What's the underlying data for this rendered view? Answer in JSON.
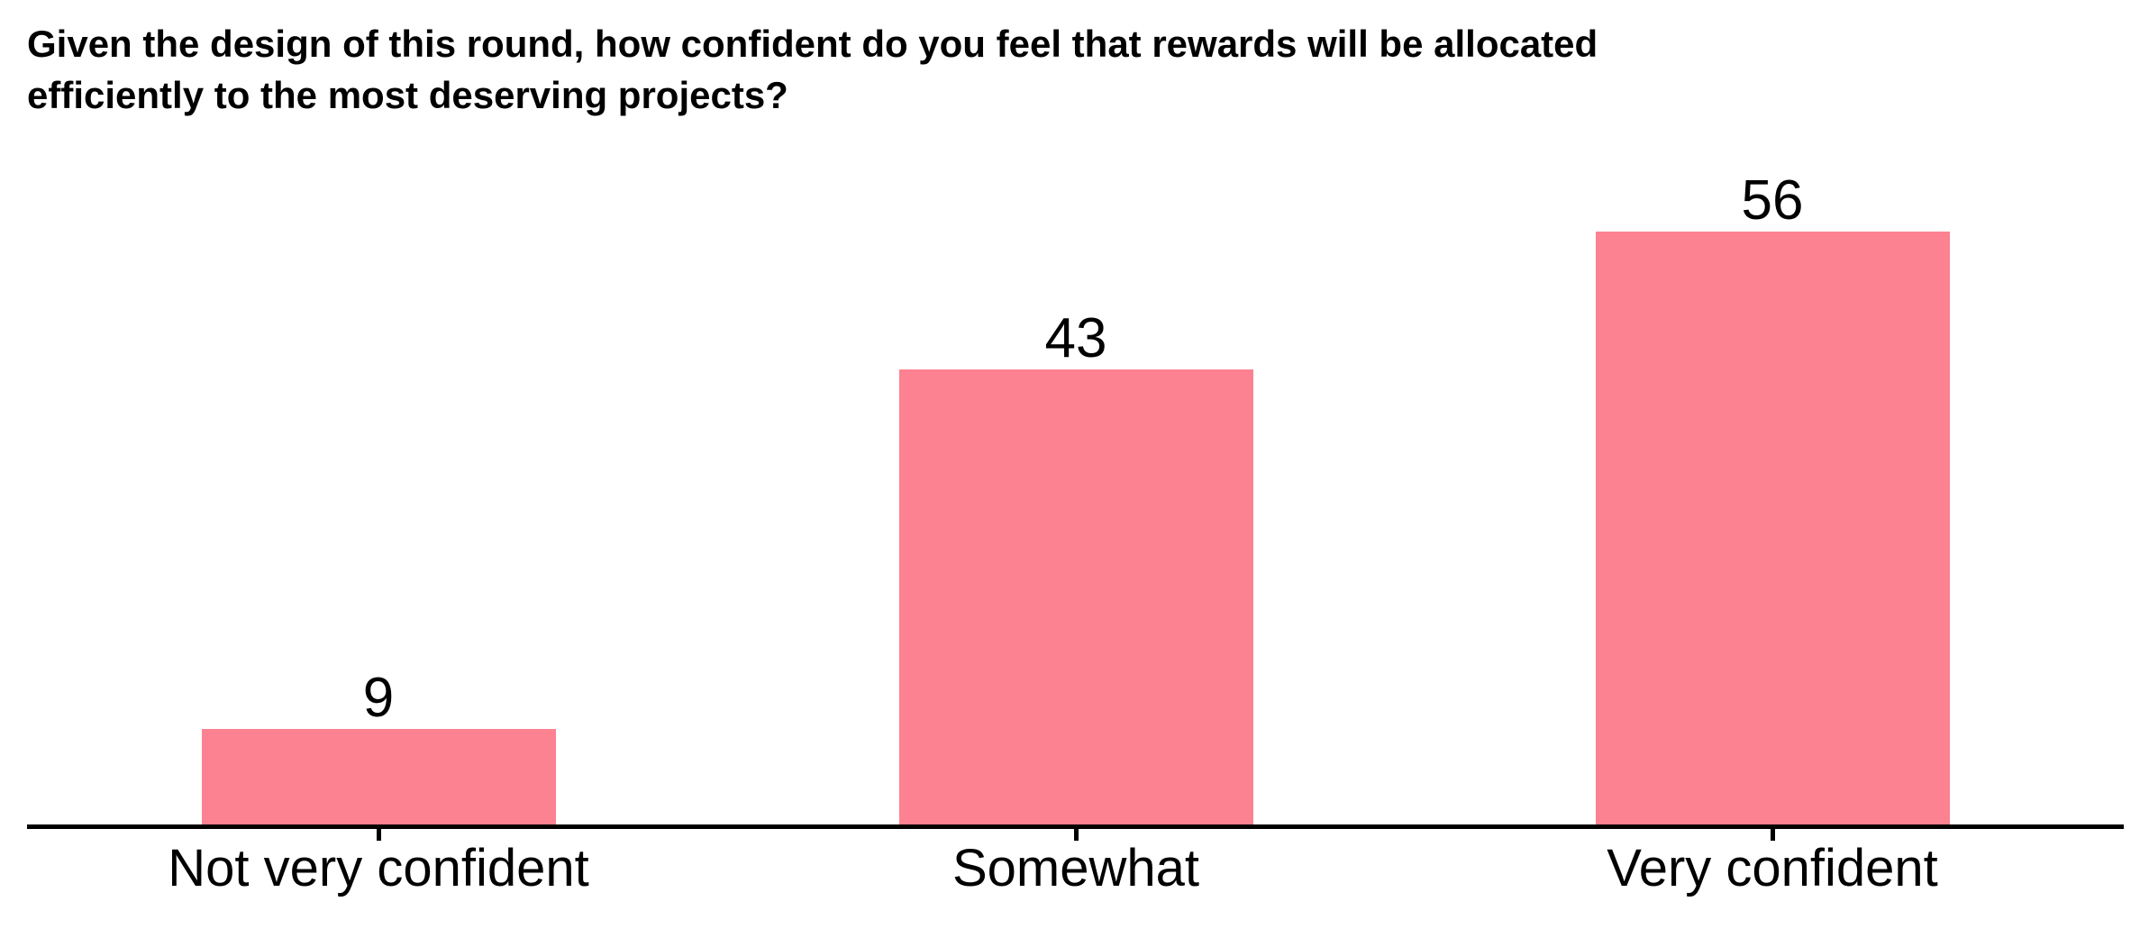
{
  "chart": {
    "title": "Given the design of this round, how confident do you feel that rewards will be allocated efficiently to the most deserving projects?"
  },
  "chart_data": {
    "type": "bar",
    "title": "Given the design of this round, how confident do you feel that rewards will be allocated efficiently to the most deserving projects?",
    "categories": [
      "Not very confident",
      "Somewhat",
      "Very confident"
    ],
    "values": [
      9,
      43,
      56
    ],
    "bar_color": "#FC8191",
    "text_color": "#000000",
    "axis_color": "#000000",
    "background_color": "#FFFFFF",
    "xlabel": "",
    "ylabel": "",
    "ylim": [
      0,
      60
    ],
    "grid": false,
    "legend": false,
    "value_labels_shown": true,
    "y_axis_shown": false
  }
}
